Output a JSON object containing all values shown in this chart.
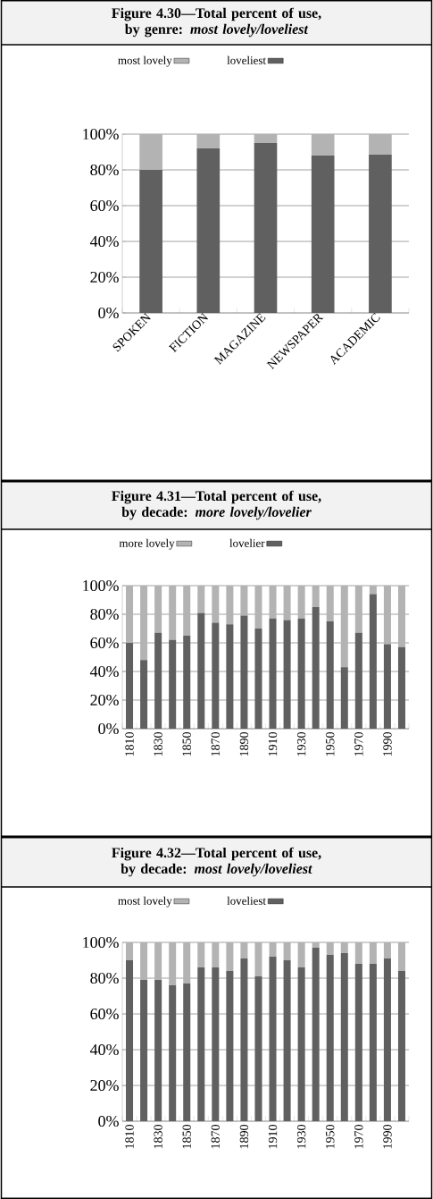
{
  "chart_data": [
    {
      "type": "bar",
      "title": "Figure 4.30—Total percent of use, by genre: *most lovely/loveliest*",
      "stacked": true,
      "legend": "top",
      "grid": "y",
      "categories": [
        "SPOKEN",
        "FICTION",
        "MAGAZINE",
        "NEWSPAPER",
        "ACADEMIC"
      ],
      "series": [
        {
          "name": "loveliest",
          "color": "#606060",
          "values": [
            80,
            92,
            95,
            88,
            88.5
          ]
        },
        {
          "name": "most lovely",
          "color": "#b3b3b3",
          "values": [
            20,
            8,
            5,
            12,
            11.5
          ]
        }
      ],
      "ylim": [
        0,
        100
      ],
      "yticks": [
        {
          "value": 0,
          "label": "0%"
        },
        {
          "value": 20,
          "label": "20%"
        },
        {
          "value": 40,
          "label": "40%"
        },
        {
          "value": 60,
          "label": "60%"
        },
        {
          "value": 80,
          "label": "80%"
        },
        {
          "value": 100,
          "label": "100%"
        }
      ]
    },
    {
      "type": "bar",
      "title": "Figure 4.31—Total percent of use, by decade: *more lovely/lovelier*",
      "stacked": true,
      "legend": "top",
      "grid": "y",
      "categories": [
        "1810",
        null,
        "1830",
        null,
        "1850",
        null,
        "1870",
        null,
        "1890",
        null,
        "1910",
        null,
        "1930",
        null,
        "1950",
        null,
        "1970",
        null,
        "1990",
        null
      ],
      "series": [
        {
          "name": "lovelier",
          "color": "#606060",
          "values": [
            60,
            48,
            67,
            62,
            65,
            81,
            74,
            73,
            79,
            70,
            77,
            76,
            77,
            85,
            75,
            43,
            67,
            94,
            59,
            57
          ]
        },
        {
          "name": "more lovely",
          "color": "#b3b3b3",
          "values": [
            40,
            52,
            33,
            38,
            35,
            19,
            26,
            27,
            21,
            30,
            23,
            24,
            23,
            15,
            25,
            57,
            33,
            6,
            41,
            43
          ]
        }
      ],
      "ylim": [
        0,
        100
      ],
      "yticks": [
        {
          "value": 0,
          "label": "0%"
        },
        {
          "value": 20,
          "label": "20%"
        },
        {
          "value": 40,
          "label": "40%"
        },
        {
          "value": 60,
          "label": "60%"
        },
        {
          "value": 80,
          "label": "80%"
        },
        {
          "value": 100,
          "label": "100%"
        }
      ]
    },
    {
      "type": "bar",
      "title": "Figure 4.32—Total percent of use, by decade: *most lovely/loveliest*",
      "stacked": true,
      "legend": "top",
      "grid": "y",
      "categories": [
        "1810",
        null,
        "1830",
        null,
        "1850",
        null,
        "1870",
        null,
        "1890",
        null,
        "1910",
        null,
        "1930",
        null,
        "1950",
        null,
        "1970",
        null,
        "1990",
        null
      ],
      "series": [
        {
          "name": "loveliest",
          "color": "#606060",
          "values": [
            90,
            79,
            79,
            76,
            77,
            86,
            86,
            84,
            91,
            81,
            92,
            90,
            86,
            97,
            93,
            94,
            88,
            88,
            91,
            84
          ]
        },
        {
          "name": "most lovely",
          "color": "#b3b3b3",
          "values": [
            10,
            21,
            21,
            24,
            23,
            14,
            14,
            16,
            9,
            19,
            8,
            10,
            14,
            3,
            7,
            6,
            12,
            12,
            9,
            16
          ]
        }
      ],
      "ylim": [
        0,
        100
      ],
      "yticks": [
        {
          "value": 0,
          "label": "0%"
        },
        {
          "value": 20,
          "label": "20%"
        },
        {
          "value": 40,
          "label": "40%"
        },
        {
          "value": 60,
          "label": "60%"
        },
        {
          "value": 80,
          "label": "80%"
        },
        {
          "value": 100,
          "label": "100%"
        }
      ]
    }
  ]
}
